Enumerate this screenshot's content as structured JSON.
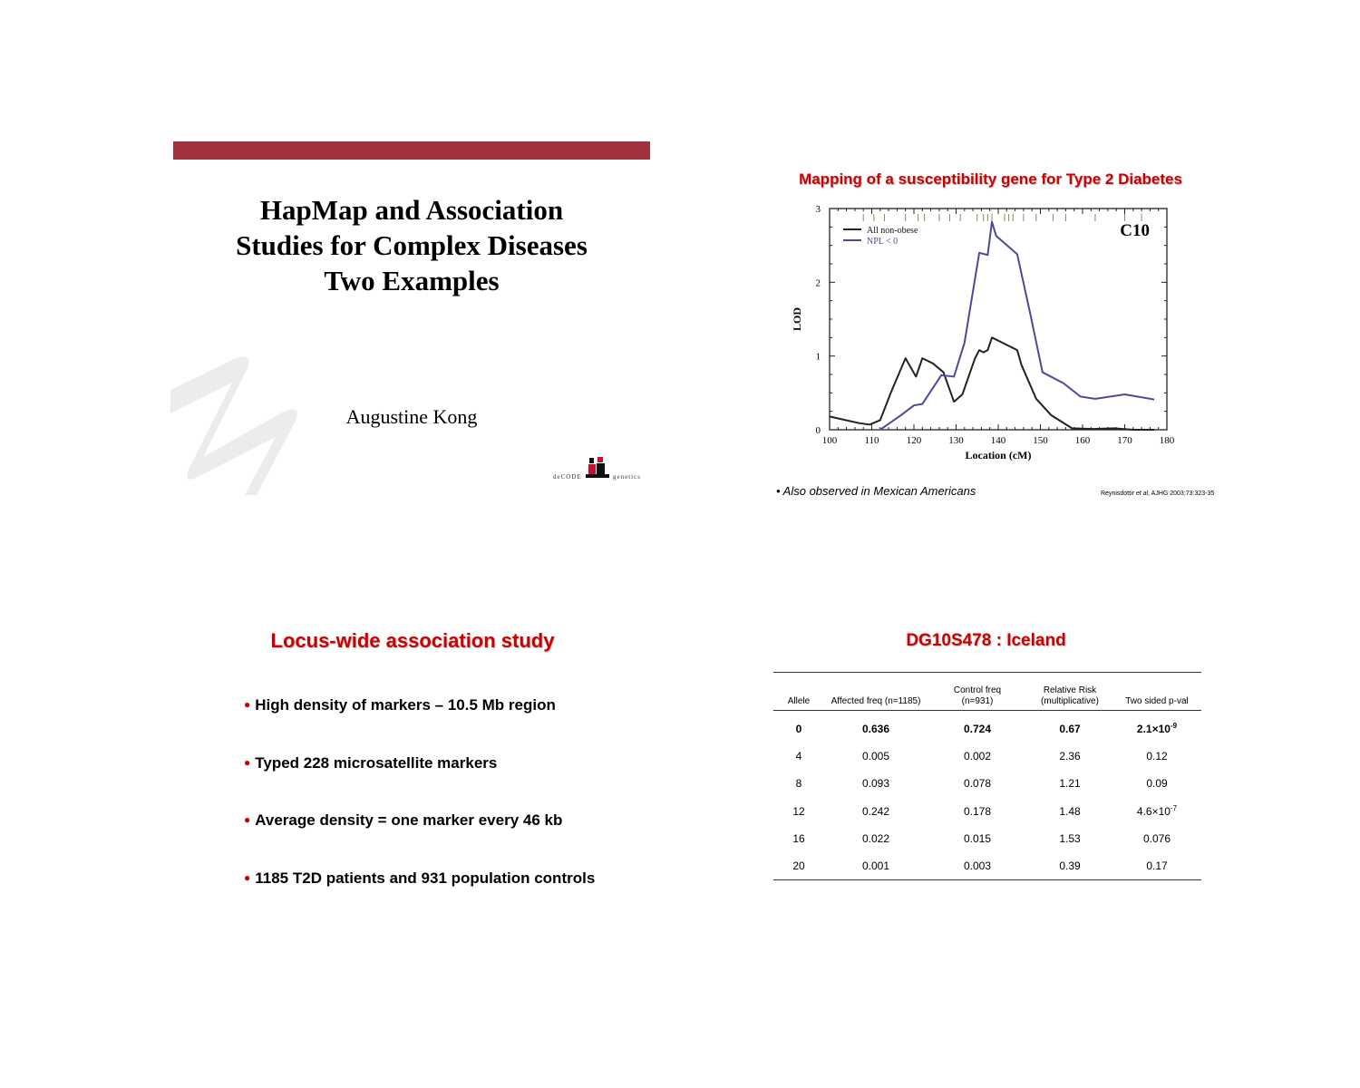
{
  "slide1": {
    "title_lines": [
      "HapMap and Association",
      "Studies for Complex Diseases",
      "Two Examples"
    ],
    "author": "Augustine Kong",
    "logo_left": "deCODE",
    "logo_right": "genetics",
    "bar_color": "#a3303f"
  },
  "slide2": {
    "title": "Mapping of a susceptibility gene for Type 2 Diabetes",
    "note": "• Also observed in Mexican Americans",
    "reference": {
      "author": "Reynisdottir ",
      "etal": "et al",
      "rest": ", AJHG 2003;73:323-35"
    }
  },
  "slide3": {
    "title": "Locus-wide association study",
    "bullets": [
      "High density of markers – 10.5 Mb region",
      "Typed 228 microsatellite markers",
      "Average density = one marker every 46 kb",
      "1185 T2D patients and 931 population controls"
    ]
  },
  "slide4": {
    "title": "DG10S478 : Iceland",
    "headers": [
      {
        "line1": "",
        "line2": "Allele"
      },
      {
        "line1": "",
        "line2": "Affected freq (n=1185)"
      },
      {
        "line1": "Control freq",
        "line2": "(n=931)"
      },
      {
        "line1": "Relative Risk",
        "line2": "(multiplicative)"
      },
      {
        "line1": "",
        "line2": "Two sided p-val"
      }
    ],
    "rows": [
      {
        "allele": "0",
        "affected": "0.636",
        "control": "0.724",
        "rr": "0.67",
        "p_base": "2.1×10",
        "p_exp": "-9"
      },
      {
        "allele": "4",
        "affected": "0.005",
        "control": "0.002",
        "rr": "2.36",
        "p_base": "0.12",
        "p_exp": ""
      },
      {
        "allele": "8",
        "affected": "0.093",
        "control": "0.078",
        "rr": "1.21",
        "p_base": "0.09",
        "p_exp": ""
      },
      {
        "allele": "12",
        "affected": "0.242",
        "control": "0.178",
        "rr": "1.48",
        "p_base": "4.6×10",
        "p_exp": "-7"
      },
      {
        "allele": "16",
        "affected": "0.022",
        "control": "0.015",
        "rr": "1.53",
        "p_base": "0.076",
        "p_exp": ""
      },
      {
        "allele": "20",
        "affected": "0.001",
        "control": "0.003",
        "rr": "0.39",
        "p_base": "0.17",
        "p_exp": ""
      }
    ]
  },
  "chart_data": {
    "type": "line",
    "title": "",
    "panel_label": "C10",
    "xlabel": "Location (cM)",
    "ylabel": "LOD",
    "xlim": [
      100,
      180
    ],
    "ylim": [
      0,
      3
    ],
    "xticks": [
      100,
      110,
      120,
      130,
      140,
      150,
      160,
      170,
      180
    ],
    "yticks": [
      0,
      1,
      2,
      3
    ],
    "legend_position": "top-left",
    "marker_ticks": [
      108,
      110.5,
      113,
      118,
      121,
      122.5,
      126,
      128.5,
      131,
      135,
      136.5,
      137.5,
      138.5,
      141.5,
      142.5,
      143.5,
      146,
      149,
      153,
      156,
      163,
      170,
      174
    ],
    "series": [
      {
        "name": "All non-obese",
        "color": "#222222",
        "x": [
          100,
          107,
          109.5,
          112,
          114.5,
          118,
          120.5,
          122,
          124.5,
          127,
          129.5,
          131.5,
          134.5,
          135.5,
          136.5,
          137.5,
          138.5,
          141,
          144.5,
          145.5,
          149,
          152.5,
          157.5,
          162.5,
          167.5,
          172,
          177
        ],
        "y": [
          0.18,
          0.09,
          0.07,
          0.13,
          0.5,
          0.97,
          0.72,
          0.97,
          0.9,
          0.78,
          0.38,
          0.48,
          0.97,
          1.08,
          1.05,
          1.08,
          1.25,
          1.18,
          1.08,
          0.88,
          0.42,
          0.2,
          0.02,
          0.01,
          0.02,
          0.0,
          0.0
        ]
      },
      {
        "name": "NPL < 0",
        "color": "#4a4a9c",
        "x": [
          112,
          114.5,
          117,
          120,
          122,
          126.5,
          129.5,
          132,
          135.5,
          137.5,
          138.5,
          139.5,
          144.5,
          147.5,
          150.5,
          155.5,
          159.5,
          163,
          170,
          177
        ],
        "y": [
          0.0,
          0.1,
          0.2,
          0.33,
          0.35,
          0.74,
          0.72,
          1.18,
          2.4,
          2.37,
          2.82,
          2.63,
          2.38,
          1.6,
          0.78,
          0.63,
          0.45,
          0.42,
          0.48,
          0.41
        ]
      }
    ]
  }
}
